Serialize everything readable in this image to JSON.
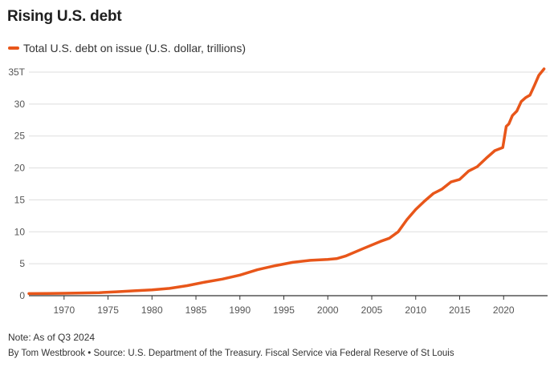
{
  "title": "Rising U.S. debt",
  "note": "Note: As of Q3 2024",
  "source": "By Tom Westbrook • Source: U.S. Department of the Treasury. Fiscal Service via Federal Reserve of St Louis",
  "colors": {
    "series": "#e8561a",
    "grid": "#dddddd",
    "axis": "#333333",
    "text": "#555555"
  },
  "chart_data": {
    "type": "line",
    "title": "Rising U.S. debt",
    "xlabel": "",
    "ylabel": "",
    "xlim": [
      1966,
      2025
    ],
    "ylim": [
      0,
      35
    ],
    "grid": true,
    "legend_position": "top-left",
    "y_ticks": [
      {
        "value": 0,
        "label": "0"
      },
      {
        "value": 5,
        "label": "5"
      },
      {
        "value": 10,
        "label": "10"
      },
      {
        "value": 15,
        "label": "15"
      },
      {
        "value": 20,
        "label": "20"
      },
      {
        "value": 25,
        "label": "25"
      },
      {
        "value": 30,
        "label": "30"
      },
      {
        "value": 35,
        "label": "35T"
      }
    ],
    "x_ticks": [
      {
        "value": 1970,
        "label": "1970"
      },
      {
        "value": 1975,
        "label": "1975"
      },
      {
        "value": 1980,
        "label": "1980"
      },
      {
        "value": 1985,
        "label": "1985"
      },
      {
        "value": 1990,
        "label": "1990"
      },
      {
        "value": 1995,
        "label": "1995"
      },
      {
        "value": 2000,
        "label": "2000"
      },
      {
        "value": 2005,
        "label": "2005"
      },
      {
        "value": 2010,
        "label": "2010"
      },
      {
        "value": 2015,
        "label": "2015"
      },
      {
        "value": 2020,
        "label": "2020"
      }
    ],
    "series": [
      {
        "name": "Total U.S. debt on issue (U.S. dollar, trillions)",
        "x": [
          1966,
          1968,
          1970,
          1972,
          1974,
          1976,
          1978,
          1980,
          1982,
          1984,
          1986,
          1988,
          1990,
          1992,
          1994,
          1996,
          1998,
          2000,
          2001,
          2002,
          2004,
          2006,
          2007,
          2008,
          2009,
          2010,
          2011,
          2012,
          2013,
          2014,
          2015,
          2016,
          2017,
          2018,
          2019,
          2019.9,
          2020.3,
          2020.6,
          2021,
          2021.5,
          2022,
          2022.5,
          2023,
          2023.5,
          2024,
          2024.6
        ],
        "values": [
          0.33,
          0.35,
          0.38,
          0.43,
          0.48,
          0.62,
          0.77,
          0.91,
          1.14,
          1.57,
          2.12,
          2.6,
          3.23,
          4.06,
          4.69,
          5.22,
          5.53,
          5.67,
          5.8,
          6.2,
          7.37,
          8.5,
          9.0,
          10.0,
          11.9,
          13.5,
          14.8,
          16.0,
          16.7,
          17.8,
          18.2,
          19.5,
          20.2,
          21.5,
          22.7,
          23.2,
          26.5,
          26.9,
          28.2,
          28.9,
          30.4,
          31.0,
          31.4,
          32.9,
          34.5,
          35.5
        ]
      }
    ]
  }
}
